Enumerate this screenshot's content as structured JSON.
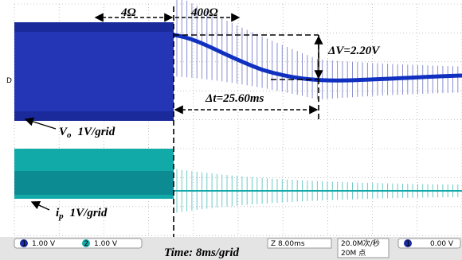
{
  "annotations": {
    "left_load": "4Ω",
    "right_load": "400Ω",
    "delta_v": "ΔV=2.20V",
    "delta_t": "Δt=25.60ms",
    "vo": {
      "symbol": "V",
      "sub": "o",
      "scale": "1V/grid"
    },
    "ip": {
      "symbol": "i",
      "sub": "p",
      "scale": "1V/grid"
    },
    "time": "Time:  8ms/grid"
  },
  "status_bar": {
    "ch1": "1",
    "ch1_scale": "1.00 V",
    "ch2": "2",
    "ch2_scale": "1.00 V",
    "timebase": "Z 8.00ms",
    "sample_rate": "20.0M次/秒",
    "points": "20M 点",
    "trig_ch": "1",
    "trig_level": "0.00 V"
  }
}
